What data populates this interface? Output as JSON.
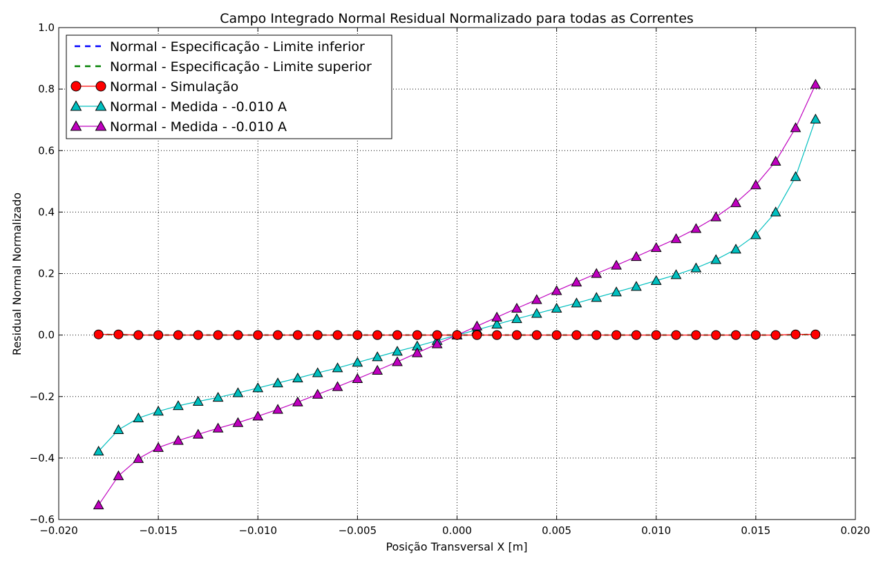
{
  "chart_data": {
    "type": "line",
    "title": "Campo Integrado Normal Residual Normalizado para todas as Correntes",
    "xlabel": "Posição Transversal X [m]",
    "ylabel": "Residual Normal Normalizado",
    "xlim": [
      -0.02,
      0.02
    ],
    "ylim": [
      -0.6,
      1.0
    ],
    "xticks": [
      -0.02,
      -0.015,
      -0.01,
      -0.005,
      0.0,
      0.005,
      0.01,
      0.015,
      0.02
    ],
    "xtick_labels": [
      "−0.020",
      "−0.015",
      "−0.010",
      "−0.005",
      "0.000",
      "0.005",
      "0.010",
      "0.015",
      "0.020"
    ],
    "yticks": [
      -0.6,
      -0.4,
      -0.2,
      0.0,
      0.2,
      0.4,
      0.6,
      0.8,
      1.0
    ],
    "ytick_labels": [
      "−0.6",
      "−0.4",
      "−0.2",
      "0.0",
      "0.2",
      "0.4",
      "0.6",
      "0.8",
      "1.0"
    ],
    "grid": true,
    "legend_position": "top-left",
    "x": [
      -0.018,
      -0.017,
      -0.016,
      -0.015,
      -0.014,
      -0.013,
      -0.012,
      -0.011,
      -0.01,
      -0.009,
      -0.008,
      -0.007,
      -0.006,
      -0.005,
      -0.004,
      -0.003,
      -0.002,
      -0.001,
      0.0,
      0.001,
      0.002,
      0.003,
      0.004,
      0.005,
      0.006,
      0.007,
      0.008,
      0.009,
      0.01,
      0.011,
      0.012,
      0.013,
      0.014,
      0.015,
      0.016,
      0.017,
      0.018
    ],
    "series": [
      {
        "name": "Normal - Especificação - Limite inferior",
        "color": "#0000ff",
        "style": "dashed",
        "marker": "none",
        "values": [
          0.002,
          0.001,
          0,
          0,
          0,
          0,
          0,
          0,
          0,
          0,
          0,
          0,
          0,
          0,
          0,
          0,
          0,
          0,
          0,
          0,
          0,
          0,
          0,
          0,
          0,
          0,
          0,
          0,
          0,
          0,
          0,
          0,
          0,
          0,
          0,
          0.001,
          0.002
        ]
      },
      {
        "name": "Normal - Especificação - Limite superior",
        "color": "#008000",
        "style": "dashed",
        "marker": "none",
        "values": [
          0.002,
          0.001,
          0,
          0,
          0,
          0,
          0,
          0,
          0,
          0,
          0,
          0,
          0,
          0,
          0,
          0,
          0,
          0,
          0,
          0,
          0,
          0,
          0,
          0,
          0,
          0,
          0,
          0,
          0,
          0,
          0,
          0,
          0,
          0,
          0,
          0.001,
          0.002
        ]
      },
      {
        "name": "Normal - Simulação",
        "color": "#ff0000",
        "style": "solid",
        "marker": "circle",
        "values": [
          0.002,
          0.002,
          0,
          0,
          0,
          0,
          0,
          0,
          0,
          0,
          0,
          0,
          0,
          0,
          0,
          0,
          0,
          0,
          0,
          0,
          0,
          0,
          0,
          0,
          0,
          0,
          0,
          0,
          0,
          0,
          0,
          0,
          0,
          0,
          0,
          0.002,
          0.002
        ]
      },
      {
        "name": "Normal - Medida - -0.010 A",
        "color": "#00bfbf",
        "style": "solid",
        "marker": "triangle",
        "values": [
          -0.378,
          -0.308,
          -0.27,
          -0.248,
          -0.23,
          -0.216,
          -0.203,
          -0.188,
          -0.172,
          -0.156,
          -0.14,
          -0.123,
          -0.107,
          -0.089,
          -0.071,
          -0.053,
          -0.036,
          -0.018,
          0,
          0.017,
          0.035,
          0.053,
          0.07,
          0.087,
          0.104,
          0.122,
          0.14,
          0.158,
          0.177,
          0.196,
          0.218,
          0.245,
          0.279,
          0.326,
          0.4,
          0.515,
          0.702
        ]
      },
      {
        "name": "Normal - Medida - -0.010 A",
        "color": "#bf00bf",
        "style": "solid",
        "marker": "triangle",
        "values": [
          -0.553,
          -0.458,
          -0.402,
          -0.366,
          -0.343,
          -0.323,
          -0.303,
          -0.285,
          -0.264,
          -0.242,
          -0.218,
          -0.193,
          -0.168,
          -0.142,
          -0.115,
          -0.087,
          -0.058,
          -0.029,
          0,
          0.029,
          0.058,
          0.087,
          0.115,
          0.144,
          0.172,
          0.2,
          0.227,
          0.255,
          0.284,
          0.313,
          0.346,
          0.384,
          0.43,
          0.488,
          0.565,
          0.674,
          0.815
        ]
      }
    ]
  }
}
